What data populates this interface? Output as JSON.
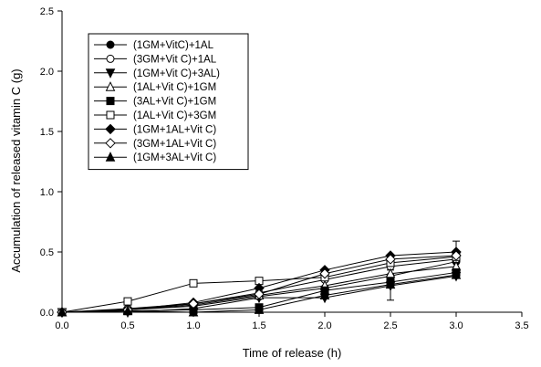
{
  "chart_data": {
    "type": "line",
    "title": "",
    "xlabel": "Time of release (h)",
    "ylabel": "Accumulation of released vitamin C (g)",
    "xlim": [
      0.0,
      3.5
    ],
    "ylim": [
      0.0,
      2.5
    ],
    "xticks": [
      "0.0",
      "0.5",
      "1.0",
      "1.5",
      "2.0",
      "2.5",
      "3.0",
      "3.5"
    ],
    "yticks": [
      "0.0",
      "0.5",
      "1.0",
      "1.5",
      "2.0",
      "2.5"
    ],
    "grid": false,
    "legend_position": "top-left",
    "x": [
      0,
      0.5,
      1.0,
      1.5,
      2.0,
      2.5,
      3.0
    ],
    "series": [
      {
        "name": "(1GM+VitC)+1AL",
        "marker": "circle",
        "fill": "#000000",
        "values": [
          0.0,
          0.02,
          0.05,
          0.13,
          0.2,
          0.3,
          0.42
        ]
      },
      {
        "name": "(3GM+Vit C)+1AL",
        "marker": "circle",
        "fill": "#ffffff",
        "values": [
          0.0,
          0.03,
          0.07,
          0.16,
          0.27,
          0.38,
          0.44
        ]
      },
      {
        "name": "(1GM+Vit C)+3AL)",
        "marker": "triangle-down",
        "fill": "#000000",
        "values": [
          0.0,
          0.0,
          0.03,
          0.12,
          0.12,
          0.22,
          0.3
        ]
      },
      {
        "name": "(1AL+Vit C)+1GM",
        "marker": "triangle-up",
        "fill": "#ffffff",
        "values": [
          0.0,
          0.02,
          0.06,
          0.14,
          0.22,
          0.32,
          0.38
        ]
      },
      {
        "name": "(3AL+Vit C)+1GM",
        "marker": "square",
        "fill": "#000000",
        "values": [
          0.0,
          0.01,
          0.02,
          0.04,
          0.18,
          0.25,
          0.33
        ]
      },
      {
        "name": "(1AL+Vit C)+3GM",
        "marker": "square",
        "fill": "#ffffff",
        "values": [
          0.0,
          0.09,
          0.24,
          0.26,
          0.29,
          0.41,
          0.46
        ]
      },
      {
        "name": "(1GM+1AL+Vit C)",
        "marker": "diamond",
        "fill": "#000000",
        "values": [
          0.0,
          0.02,
          0.08,
          0.2,
          0.35,
          0.47,
          0.5
        ]
      },
      {
        "name": "(3GM+1AL+Vit C)",
        "marker": "diamond",
        "fill": "#ffffff",
        "values": [
          0.0,
          0.02,
          0.07,
          0.15,
          0.32,
          0.44,
          0.47
        ]
      },
      {
        "name": "(1GM+3AL+Vit C)",
        "marker": "triangle-up",
        "fill": "#000000",
        "values": [
          0.0,
          0.01,
          0.0,
          0.02,
          0.14,
          0.23,
          0.31
        ]
      }
    ],
    "error_bars": [
      {
        "series": "(3AL+Vit C)+1GM",
        "x": 2.5,
        "low": 0.1,
        "high": 0.35
      },
      {
        "series": "(1GM+1AL+Vit C)",
        "x": 3.0,
        "low": 0.42,
        "high": 0.59
      }
    ]
  }
}
